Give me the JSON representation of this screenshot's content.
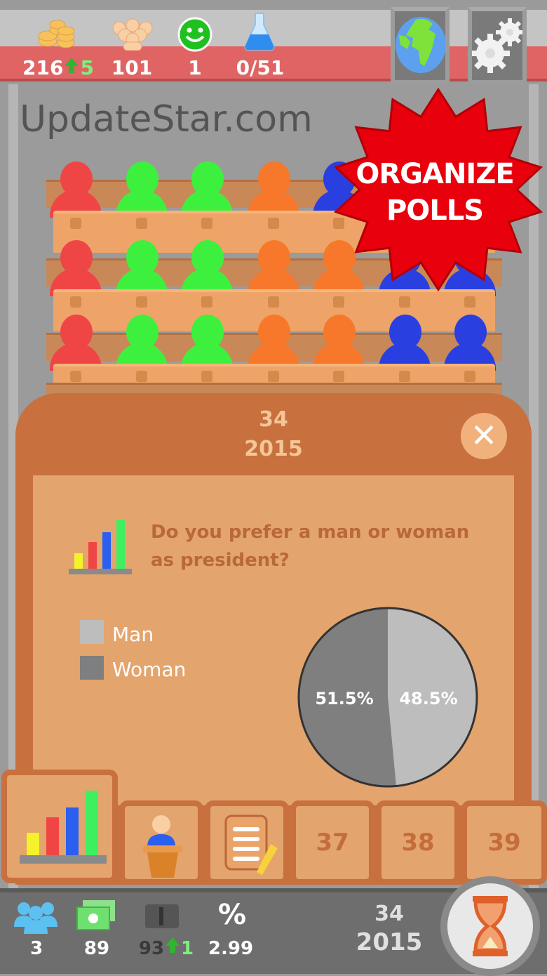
{
  "top_bar": {
    "money": {
      "value": "216",
      "change": "5",
      "icon": "coins-icon"
    },
    "population": {
      "value": "101",
      "icon": "crowd-icon"
    },
    "happiness": {
      "value": "1",
      "icon": "smiley-icon"
    },
    "research": {
      "value": "0/51",
      "icon": "flask-icon"
    },
    "buttons": [
      {
        "icon": "globe-icon"
      },
      {
        "icon": "gears-icon"
      }
    ]
  },
  "parliament": {
    "rows": [
      [
        "#f04545",
        "#3ef03e",
        "#3ef03e",
        "#f7782a",
        "#2a3fe0",
        "#2a3fe0",
        "#2a3fe0"
      ],
      [
        "#f04545",
        "#3ef03e",
        "#3ef03e",
        "#f7782a",
        "#f7782a",
        "#2a3fe0",
        "#2a3fe0"
      ],
      [
        "#f04545",
        "#3ef03e",
        "#3ef03e",
        "#f7782a",
        "#f7782a",
        "#2a3fe0",
        "#2a3fe0"
      ]
    ]
  },
  "callout": {
    "line1": "ORGANIZE",
    "line2": "POLLS",
    "color": "#e8000c"
  },
  "dialog": {
    "turn": "34",
    "year": "2015",
    "question": "Do you prefer a man or woman as president?",
    "legend": [
      {
        "label": "Man",
        "color": "#bdbdbd"
      },
      {
        "label": "Woman",
        "color": "#7f7f7f"
      }
    ]
  },
  "chart_data": {
    "type": "pie",
    "categories": [
      "Man",
      "Woman"
    ],
    "values": [
      48.5,
      51.5
    ],
    "labels": [
      "48.5%",
      "51.5%"
    ],
    "colors": [
      "#bdbdbd",
      "#7f7f7f"
    ]
  },
  "tabs": [
    {
      "icon": "bar-chart-icon"
    },
    {
      "icon": "speaker-podium-icon"
    },
    {
      "icon": "document-pencil-icon"
    },
    {
      "label": "37"
    },
    {
      "label": "38"
    },
    {
      "label": "39"
    }
  ],
  "bottom_bar": {
    "staff": "3",
    "cash": "89",
    "media": "93",
    "media_change": "1",
    "percent_symbol": "%",
    "rate": "2.99",
    "turn": "34",
    "year": "2015",
    "watermark": "UpdateStar.com"
  }
}
